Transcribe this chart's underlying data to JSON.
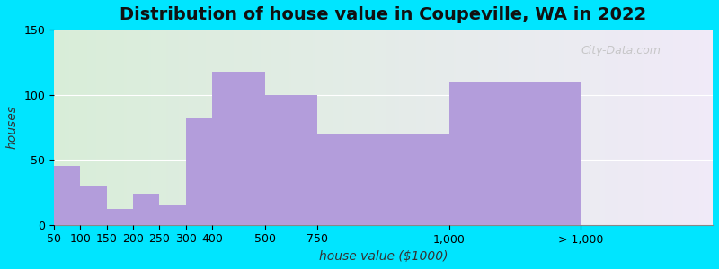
{
  "title": "Distribution of house value in Coupeville, WA in 2022",
  "xlabel": "house value ($1000)",
  "ylabel": "houses",
  "tick_labels": [
    "50",
    "100",
    "150",
    "200",
    "250",
    "300",
    "400",
    "500",
    "750",
    "1,000",
    "> 1,000"
  ],
  "bar_values": [
    45,
    30,
    12,
    24,
    15,
    82,
    118,
    100,
    70,
    110
  ],
  "bar_color": "#b39ddb",
  "ylim": [
    0,
    150
  ],
  "yticks": [
    0,
    50,
    100,
    150
  ],
  "figure_bg": "#00e5ff",
  "bg_color_left": "#d8edd8",
  "bg_color_right": "#f0eaf8",
  "title_fontsize": 14,
  "axis_label_fontsize": 10,
  "tick_fontsize": 9,
  "watermark_text": "City-Data.com",
  "bar_left_edges": [
    0,
    1,
    2,
    3,
    4,
    5,
    6,
    8,
    10,
    15
  ],
  "bar_widths": [
    1,
    1,
    1,
    1,
    1,
    1,
    2,
    2,
    5,
    5
  ],
  "tick_positions": [
    0,
    1,
    2,
    3,
    4,
    5,
    6,
    8,
    10,
    15,
    20
  ],
  "xlim": [
    0,
    25
  ]
}
